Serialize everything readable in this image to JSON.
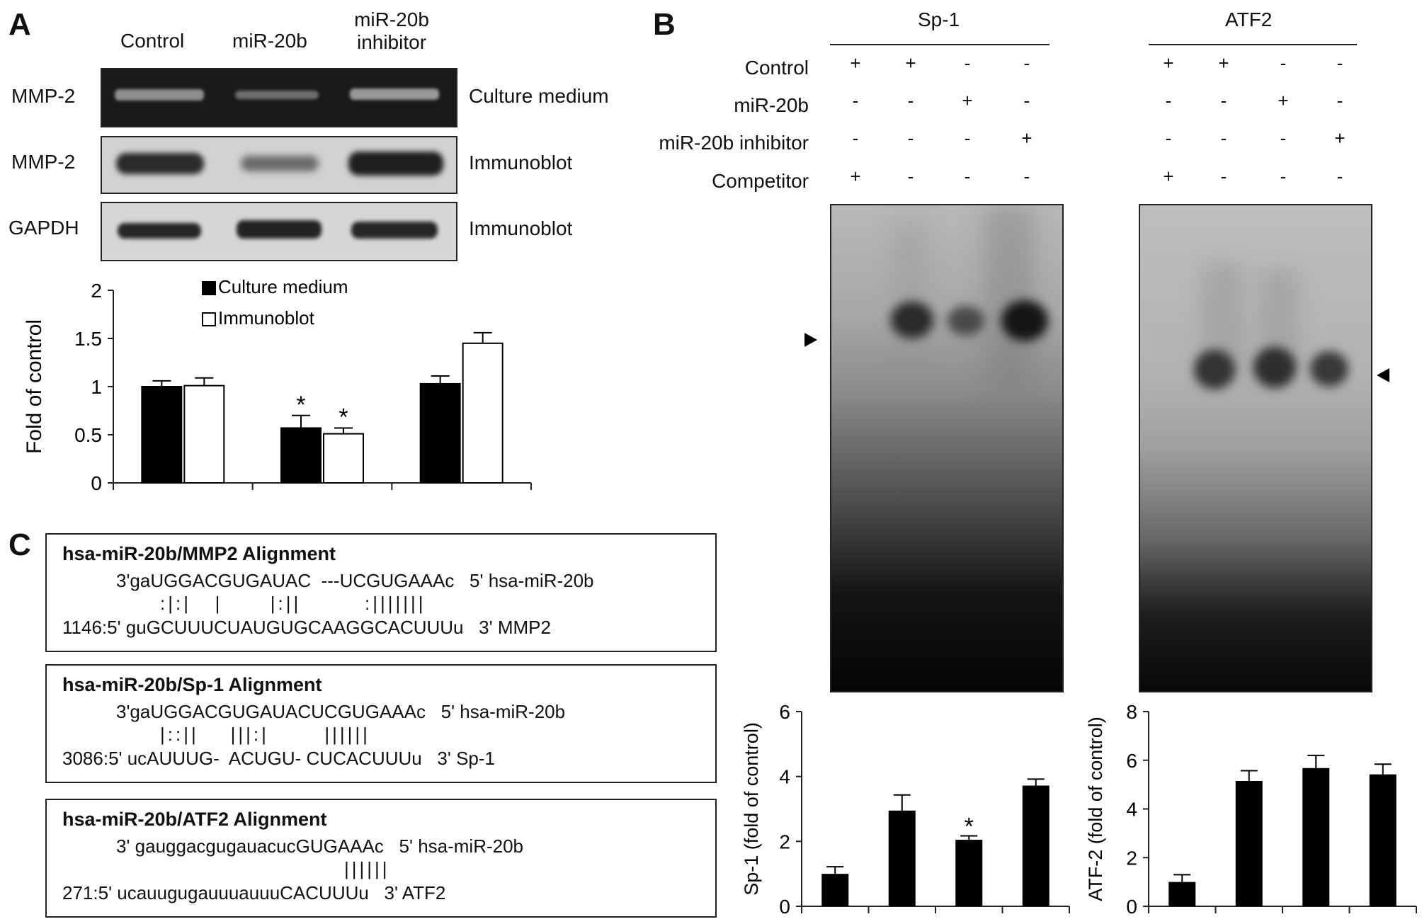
{
  "panels": {
    "a": "A",
    "b": "B",
    "c": "C"
  },
  "panelA": {
    "column_labels": [
      "Control",
      "miR-20b",
      "miR-20b\ninhibitor"
    ],
    "row_labels": [
      "MMP-2",
      "MMP-2",
      "GAPDH"
    ],
    "blot_right_labels": [
      "Culture medium",
      "Immunoblot",
      "Immunoblot"
    ]
  },
  "panelB": {
    "header_sp1": "Sp-1",
    "header_atf2": "ATF2",
    "condition_labels": [
      "Control",
      "miR-20b",
      "miR-20b inhibitor",
      "Competitor"
    ],
    "sp1_signs": [
      [
        "+",
        "+",
        "-",
        "-"
      ],
      [
        "-",
        "-",
        "+",
        "-"
      ],
      [
        "-",
        "-",
        "-",
        "+"
      ],
      [
        "+",
        "-",
        "-",
        "-"
      ]
    ],
    "atf2_signs": [
      [
        "+",
        "+",
        "-",
        "-"
      ],
      [
        "-",
        "-",
        "+",
        "-"
      ],
      [
        "-",
        "-",
        "-",
        "+"
      ],
      [
        "+",
        "-",
        "-",
        "-"
      ]
    ]
  },
  "panelC": {
    "alignments": [
      {
        "title": "hsa-miR-20b/MMP2 Alignment",
        "line1": "3'gaUGGACGUGAUAC  ---UCGUGAAAc   5' hsa-miR-20b",
        "line2": ":|:|   |      |:||        :|||||||",
        "line3": "1146:5' guGCUUUCUAUGUGCAAGGCACUUUu   3' MMP2"
      },
      {
        "title": "hsa-miR-20b/Sp-1 Alignment",
        "line1": "3'gaUGGACGUGAUACUCGUGAAAc   5' hsa-miR-20b",
        "line2": "|::||    |||:|       ||||||",
        "line3": "3086:5' ucAUUUG-  ACUGU- CUCACUUUu   3' Sp-1"
      },
      {
        "title": "hsa-miR-20b/ATF2 Alignment",
        "line1": "3' gauggacgugauacucGUGAAAc   5' hsa-miR-20b",
        "line2": "||||||",
        "line3": "271:5' ucauugugauuuauuuCACUUUu   3' ATF2"
      }
    ]
  },
  "chart_data": [
    {
      "type": "bar",
      "categories": [
        "Control",
        "miR-20b",
        "miR-20b inhibitor"
      ],
      "series": [
        {
          "name": "Culture medium",
          "values": [
            1.0,
            0.57,
            1.03
          ],
          "errors": [
            0.06,
            0.13,
            0.08
          ],
          "color": "#000000"
        },
        {
          "name": "Immunoblot",
          "values": [
            1.01,
            0.51,
            1.45
          ],
          "errors": [
            0.08,
            0.06,
            0.11
          ],
          "color": "#ffffff"
        }
      ],
      "ylabel": "Fold of control",
      "ylim": [
        0,
        2
      ],
      "yticks": [
        "0",
        "0.5",
        "1",
        "1.5",
        "2"
      ],
      "significance": [
        "",
        "*",
        ""
      ],
      "legend_position": "top-left"
    },
    {
      "type": "bar",
      "values": [
        1.0,
        2.95,
        2.05,
        3.72
      ],
      "errors": [
        0.22,
        0.48,
        0.12,
        0.2
      ],
      "ylabel": "Sp-1 (fold of control)",
      "ylim": [
        0,
        6
      ],
      "yticks": [
        "0",
        "2",
        "4",
        "6"
      ],
      "significance": [
        "",
        "",
        "*",
        ""
      ]
    },
    {
      "type": "bar",
      "values": [
        1.0,
        5.15,
        5.68,
        5.42
      ],
      "errors": [
        0.3,
        0.42,
        0.52,
        0.42
      ],
      "ylabel": "ATF-2 (fold of control)",
      "ylim": [
        0,
        8
      ],
      "yticks": [
        "0",
        "2",
        "4",
        "6",
        "8"
      ],
      "significance": [
        "",
        "",
        "",
        ""
      ]
    }
  ]
}
